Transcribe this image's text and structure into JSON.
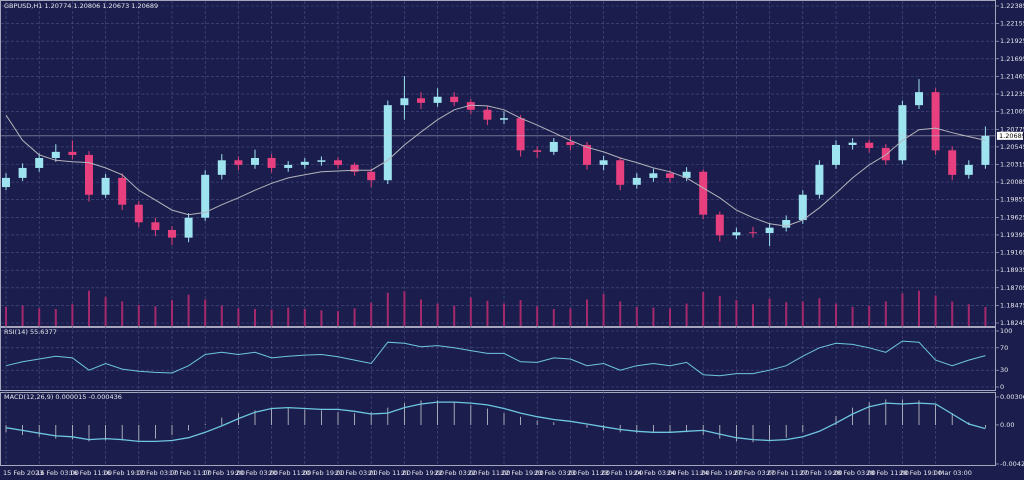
{
  "chart_data": [
    {
      "type": "candlestick",
      "title": "GBPUSD,H1  1.20774 1.20806 1.20673 1.20689",
      "categories": [
        "15 Feb 2023",
        null,
        "16 Feb 03:00",
        null,
        "16 Feb 11:00",
        null,
        "16 Feb 19:00",
        null,
        "17 Feb 03:00",
        null,
        "17 Feb 11:00",
        null,
        "17 Feb 19:00",
        null,
        "20 Feb 03:00",
        null,
        "20 Feb 11:00",
        null,
        "20 Feb 19:00",
        null,
        "21 Feb 03:00",
        null,
        "21 Feb 11:00",
        null,
        "21 Feb 19:00",
        null,
        "22 Feb 03:00",
        null,
        "22 Feb 11:00",
        null,
        "22 Feb 19:00",
        null,
        "23 Feb 03:00",
        null,
        "23 Feb 11:00",
        null,
        "23 Feb 19:00",
        null,
        "24 Feb 03:00",
        null,
        "24 Feb 11:00",
        null,
        "24 Feb 19:00",
        null,
        "27 Feb 03:00",
        null,
        "27 Feb 11:00",
        null,
        "27 Feb 19:00",
        null,
        "28 Feb 03:00",
        null,
        "28 Feb 11:00",
        null,
        "28 Feb 19:00",
        null,
        "1 Mar 03:00",
        null,
        null,
        null
      ],
      "open": [
        1.2002,
        1.2014,
        1.2027,
        1.204,
        1.2048,
        1.2044,
        1.1992,
        1.2014,
        1.1979,
        1.1956,
        1.1946,
        1.1936,
        1.1962,
        1.2018,
        1.2037,
        1.2031,
        1.204,
        1.2027,
        1.2031,
        1.2035,
        1.2037,
        1.2031,
        1.2022,
        1.2011,
        1.2109,
        1.2118,
        1.2112,
        1.212,
        1.2113,
        1.2103,
        1.209,
        1.2092,
        1.205,
        1.2048,
        1.2061,
        1.2057,
        1.2031,
        1.2037,
        1.2005,
        1.2014,
        1.202,
        1.2014,
        1.2022,
        1.1966,
        1.1939,
        1.1943,
        1.1942,
        1.1949,
        1.1959,
        1.1992,
        1.2031,
        1.2057,
        1.206,
        1.2053,
        1.2037,
        1.2109,
        1.2126,
        1.205,
        1.2018,
        1.2031
      ],
      "high": [
        1.202,
        1.2033,
        1.2046,
        1.2058,
        1.2063,
        1.2049,
        1.2019,
        1.202,
        1.1984,
        1.1962,
        1.1951,
        1.1968,
        1.2024,
        1.2045,
        1.2042,
        1.2051,
        1.2045,
        1.2036,
        1.204,
        1.2042,
        1.2041,
        1.2034,
        1.2026,
        1.2115,
        1.2147,
        1.2126,
        1.2131,
        1.2126,
        1.2117,
        1.2108,
        1.2101,
        1.2096,
        1.2055,
        1.2066,
        1.2068,
        1.2061,
        1.2043,
        1.2041,
        1.202,
        1.2026,
        1.2024,
        1.2028,
        1.2025,
        1.197,
        1.1949,
        1.195,
        1.1955,
        1.1965,
        1.1998,
        1.2037,
        1.2063,
        1.2066,
        1.2064,
        1.2058,
        1.2115,
        1.2143,
        1.2131,
        1.2055,
        1.2037,
        1.2081
      ],
      "low": [
        1.1998,
        1.201,
        1.2022,
        1.2035,
        1.2038,
        1.1983,
        1.1988,
        1.1972,
        1.195,
        1.1938,
        1.1926,
        1.193,
        1.1958,
        1.2012,
        1.2024,
        1.2026,
        1.2021,
        1.2022,
        1.2026,
        1.203,
        1.2026,
        1.2017,
        1.2002,
        1.2006,
        1.209,
        1.2104,
        1.2107,
        1.2108,
        1.2097,
        1.2083,
        1.2084,
        1.2042,
        1.204,
        1.2044,
        1.205,
        1.2025,
        1.2024,
        1.1998,
        1.2,
        1.2009,
        1.2008,
        1.201,
        1.196,
        1.1931,
        1.1934,
        1.1936,
        1.1925,
        1.1944,
        1.1954,
        1.1987,
        1.2026,
        1.2051,
        1.2047,
        1.2031,
        1.2032,
        1.2104,
        1.2044,
        1.2011,
        1.2013,
        1.2026
      ],
      "close": [
        1.2014,
        1.2027,
        1.204,
        1.2048,
        1.2044,
        1.1992,
        1.2014,
        1.1979,
        1.1956,
        1.1946,
        1.1936,
        1.1962,
        1.2018,
        1.2037,
        1.2031,
        1.204,
        1.2027,
        1.2031,
        1.2035,
        1.2037,
        1.2031,
        1.2022,
        1.2011,
        1.2109,
        1.2118,
        1.2112,
        1.212,
        1.2113,
        1.2103,
        1.209,
        1.2092,
        1.205,
        1.2048,
        1.2061,
        1.2057,
        1.2031,
        1.2037,
        1.2005,
        1.2014,
        1.202,
        1.2014,
        1.2022,
        1.1966,
        1.1939,
        1.1943,
        1.1942,
        1.1949,
        1.1959,
        1.1992,
        1.2031,
        1.2057,
        1.206,
        1.2053,
        1.2037,
        1.2109,
        1.2126,
        1.205,
        1.2018,
        1.2031,
        1.2069
      ],
      "up_color": "#9ee3f0",
      "down_color": "#e8407e",
      "ma": {
        "color": "#b4b4bc",
        "values": [
          1.2096,
          1.2063,
          1.2044,
          1.2037,
          1.2035,
          1.2034,
          1.2027,
          1.2018,
          1.1998,
          1.1985,
          1.1972,
          1.1966,
          1.1969,
          1.1979,
          1.1988,
          1.1998,
          1.2007,
          1.2014,
          1.2018,
          1.2022,
          1.2023,
          1.2024,
          1.2024,
          1.2037,
          1.2057,
          1.2074,
          1.209,
          1.2103,
          1.2109,
          1.2108,
          1.2103,
          1.2092,
          1.2083,
          1.2073,
          1.2063,
          1.2054,
          1.2048,
          1.204,
          1.2034,
          1.2027,
          1.2022,
          1.2014,
          1.2001,
          1.1988,
          1.1972,
          1.1962,
          1.1954,
          1.1951,
          1.1959,
          1.1975,
          1.1994,
          1.2014,
          1.2031,
          1.2044,
          1.2063,
          1.2077,
          1.2079,
          1.2073,
          1.2068,
          1.2063
        ]
      },
      "volume": {
        "color": "#a3286c",
        "values": [
          2800,
          3000,
          2600,
          2500,
          3200,
          5200,
          4300,
          3600,
          3100,
          2900,
          3800,
          4600,
          3900,
          3000,
          2600,
          2500,
          2400,
          2700,
          2500,
          2300,
          2200,
          2600,
          3400,
          4900,
          5100,
          3900,
          3300,
          3000,
          4200,
          3700,
          3300,
          3800,
          2900,
          2500,
          2600,
          3900,
          4700,
          3600,
          2800,
          2700,
          2600,
          3300,
          5000,
          4400,
          3800,
          3200,
          4000,
          3500,
          3600,
          4100,
          3300,
          2800,
          3000,
          3600,
          4800,
          5200,
          4500,
          3600,
          3200,
          2800
        ]
      },
      "ylim": [
        1.18245,
        1.22385
      ],
      "yticks": [
        1.22385,
        1.22155,
        1.21925,
        1.21695,
        1.21465,
        1.21235,
        1.21005,
        1.20775,
        1.20545,
        1.20315,
        1.20085,
        1.19855,
        1.19625,
        1.19395,
        1.19165,
        1.18935,
        1.18705,
        1.18475,
        1.18245
      ],
      "last_price": 1.20689,
      "grid": true
    },
    {
      "type": "line",
      "title": "RSI(14) 55.6377",
      "color": "#6ec6e0",
      "values": [
        38,
        45,
        50,
        55,
        52,
        30,
        42,
        32,
        28,
        26,
        25,
        38,
        58,
        62,
        58,
        62,
        52,
        55,
        57,
        58,
        54,
        48,
        42,
        80,
        78,
        72,
        74,
        70,
        65,
        60,
        60,
        45,
        44,
        52,
        50,
        38,
        42,
        30,
        38,
        42,
        38,
        44,
        22,
        20,
        24,
        24,
        30,
        38,
        55,
        70,
        78,
        76,
        70,
        62,
        82,
        80,
        48,
        38,
        48,
        56
      ],
      "ylim": [
        0,
        100
      ],
      "yticks": [
        100,
        70,
        30,
        0
      ],
      "grid": true
    },
    {
      "type": "macd",
      "title": "MACD(12,26,9) 0.000015 -0.000436",
      "histogram": {
        "color": "#c8c8d0",
        "values": [
          -0.0008,
          -0.0011,
          -0.0013,
          -0.0015,
          -0.0016,
          -0.0018,
          -0.0017,
          -0.0017,
          -0.0017,
          -0.0015,
          -0.0011,
          -0.0006,
          0.0001,
          0.0008,
          0.0013,
          0.0016,
          0.0018,
          0.0018,
          0.0017,
          0.0016,
          0.0014,
          0.0013,
          0.0014,
          0.0019,
          0.0024,
          0.0027,
          0.0027,
          0.0025,
          0.0022,
          0.0018,
          0.0013,
          0.0009,
          0.0005,
          0.0003,
          0.0,
          -0.0003,
          -0.0006,
          -0.0008,
          -0.0009,
          -0.0009,
          -0.0008,
          -0.0008,
          -0.0011,
          -0.0015,
          -0.0018,
          -0.0019,
          -0.0018,
          -0.0014,
          -0.0008,
          0.0,
          0.001,
          0.0019,
          0.0025,
          0.0028,
          0.0028,
          0.0027,
          0.0022,
          0.0013,
          0.0003,
          -0.0003
        ]
      },
      "line": {
        "color": "#6ec6e0",
        "values": [
          -0.0003,
          -0.0006,
          -0.0009,
          -0.0012,
          -0.0013,
          -0.0016,
          -0.0015,
          -0.0016,
          -0.0018,
          -0.0018,
          -0.0017,
          -0.0014,
          -0.0008,
          -0.0001,
          0.0007,
          0.0014,
          0.0018,
          0.0019,
          0.0018,
          0.0017,
          0.0017,
          0.0015,
          0.0012,
          0.0013,
          0.0019,
          0.0023,
          0.0025,
          0.0025,
          0.0024,
          0.0022,
          0.0018,
          0.0013,
          0.0009,
          0.0006,
          0.0004,
          0.0001,
          -0.0002,
          -0.0005,
          -0.0007,
          -0.0008,
          -0.0008,
          -0.0007,
          -0.0006,
          -0.001,
          -0.0014,
          -0.0016,
          -0.0017,
          -0.0016,
          -0.0013,
          -0.0007,
          0.0002,
          0.0012,
          0.002,
          0.0024,
          0.0023,
          0.0024,
          0.0023,
          0.0012,
          0.0001,
          -0.0004
        ]
      },
      "ylim": [
        -0.004279,
        0.003064
      ],
      "yticks": [
        0.003064,
        {
          "value": 0,
          "label": "0.00"
        },
        -0.004279
      ],
      "grid": false
    }
  ]
}
